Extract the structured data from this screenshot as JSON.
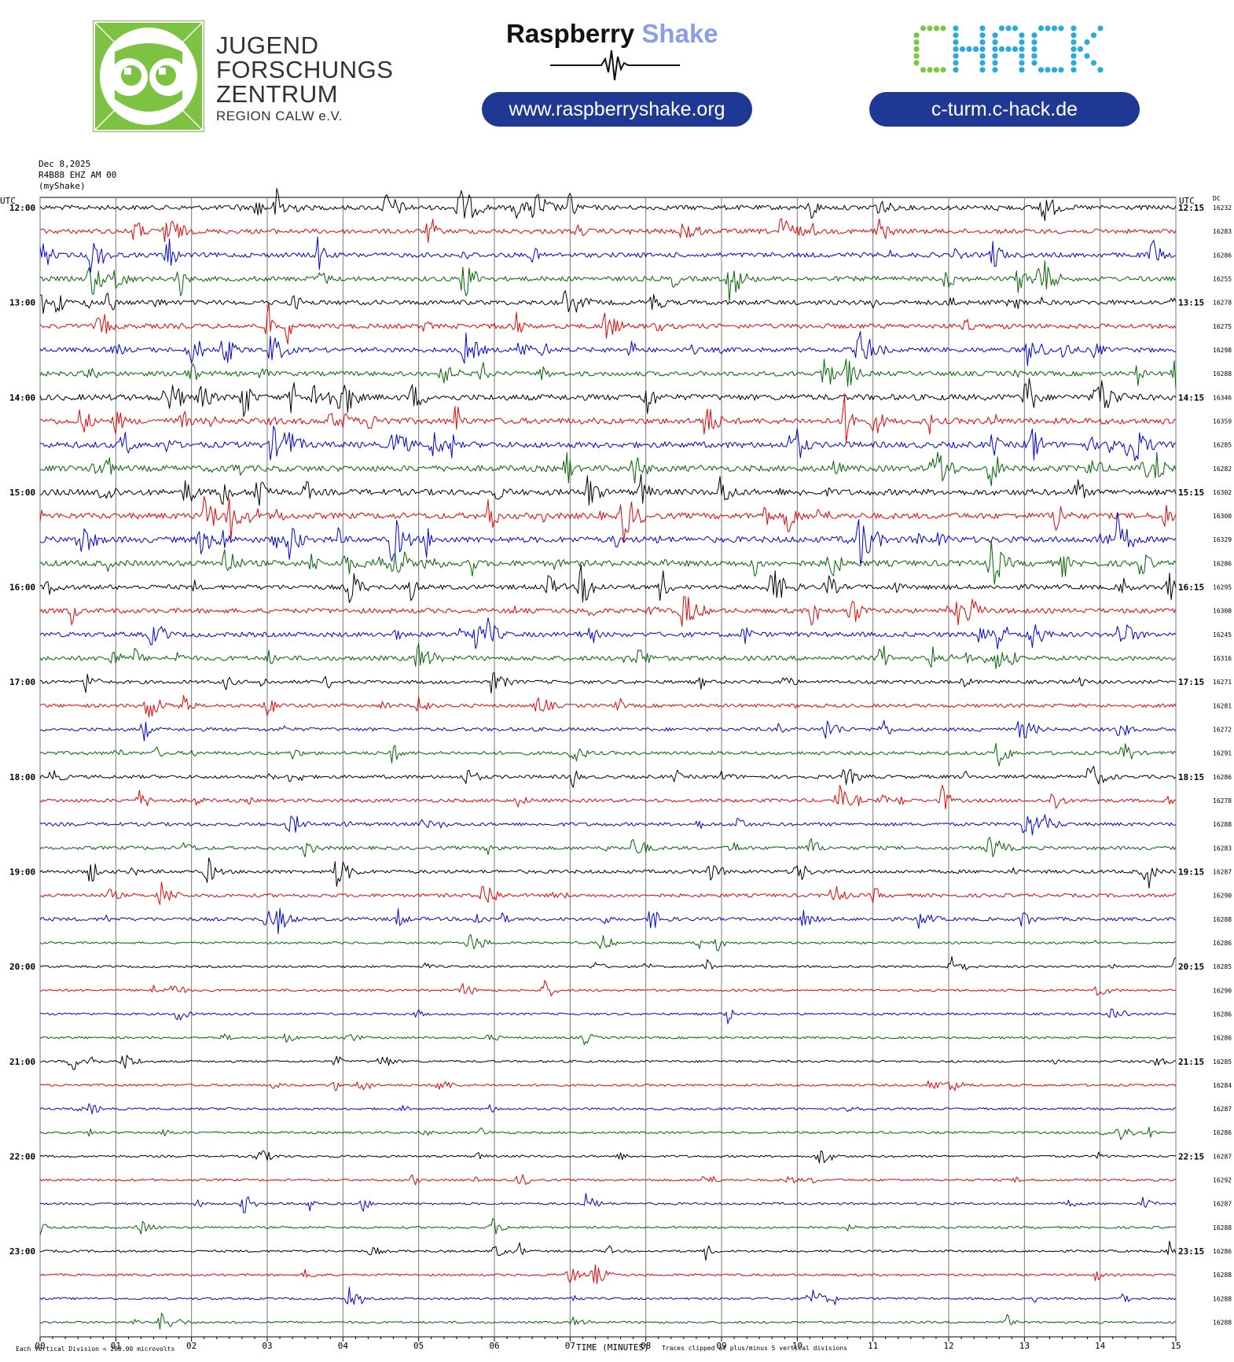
{
  "header": {
    "jfz_logo": {
      "line1": "JUGEND",
      "line2": "FORSCHUNGS",
      "line3": "ZENTRUM",
      "line4": "REGION CALW e.V.",
      "color": "#7dc242",
      "icon": "owl-icon"
    },
    "raspberry_shake": {
      "title_part1": "Raspberry",
      "title_part2": "Shake",
      "url": "www.raspberryshake.org",
      "icon": "seismogram-wave-icon"
    },
    "chack": {
      "logo_text": "CHACK",
      "url": "c-turm.c-hack.de",
      "colors": [
        "#7ac943",
        "#29abe2"
      ]
    }
  },
  "meta": {
    "date": "Dec 8,2025",
    "station": "R4B88 EHZ AM 00",
    "source": "(myShake)"
  },
  "chart_data": {
    "type": "helicorder",
    "left_axis_title": "UTC",
    "right_axis_title": "UTC",
    "dc_title": "DC",
    "xlabel": "TIME (MINUTES)",
    "x_ticks": [
      "00",
      "01",
      "02",
      "03",
      "04",
      "05",
      "06",
      "07",
      "08",
      "09",
      "10",
      "11",
      "12",
      "13",
      "14",
      "15"
    ],
    "xlim": [
      0,
      15
    ],
    "scale_note": "Each Vertical Division =  200.00 microvolts",
    "clip_note": "Traces clipped at plus/minus 5 vertical divisions",
    "trace_colors": [
      "#000000",
      "#ee0000",
      "#0000dd",
      "#006600"
    ],
    "rows": [
      {
        "left": "12:00",
        "right": "12:15",
        "dc": "16232",
        "activity": 3
      },
      {
        "left": "",
        "right": "",
        "dc": "16283",
        "activity": 3
      },
      {
        "left": "",
        "right": "",
        "dc": "16286",
        "activity": 3
      },
      {
        "left": "",
        "right": "",
        "dc": "16255",
        "activity": 3
      },
      {
        "left": "13:00",
        "right": "13:15",
        "dc": "16278",
        "activity": 3
      },
      {
        "left": "",
        "right": "",
        "dc": "16275",
        "activity": 3
      },
      {
        "left": "",
        "right": "",
        "dc": "16298",
        "activity": 3
      },
      {
        "left": "",
        "right": "",
        "dc": "16288",
        "activity": 3
      },
      {
        "left": "14:00",
        "right": "14:15",
        "dc": "16346",
        "activity": 4
      },
      {
        "left": "",
        "right": "",
        "dc": "16359",
        "activity": 4
      },
      {
        "left": "",
        "right": "",
        "dc": "16285",
        "activity": 4
      },
      {
        "left": "",
        "right": "",
        "dc": "16282",
        "activity": 4
      },
      {
        "left": "15:00",
        "right": "15:15",
        "dc": "16302",
        "activity": 4
      },
      {
        "left": "",
        "right": "",
        "dc": "16300",
        "activity": 4
      },
      {
        "left": "",
        "right": "",
        "dc": "16329",
        "activity": 4
      },
      {
        "left": "",
        "right": "",
        "dc": "16286",
        "activity": 4
      },
      {
        "left": "16:00",
        "right": "16:15",
        "dc": "16295",
        "activity": 3
      },
      {
        "left": "",
        "right": "",
        "dc": "16308",
        "activity": 3
      },
      {
        "left": "",
        "right": "",
        "dc": "16245",
        "activity": 3
      },
      {
        "left": "",
        "right": "",
        "dc": "16316",
        "activity": 3
      },
      {
        "left": "17:00",
        "right": "17:15",
        "dc": "16271",
        "activity": 2
      },
      {
        "left": "",
        "right": "",
        "dc": "16281",
        "activity": 2
      },
      {
        "left": "",
        "right": "",
        "dc": "16272",
        "activity": 2
      },
      {
        "left": "",
        "right": "",
        "dc": "16291",
        "activity": 2
      },
      {
        "left": "18:00",
        "right": "18:15",
        "dc": "16286",
        "activity": 2
      },
      {
        "left": "",
        "right": "",
        "dc": "16278",
        "activity": 2
      },
      {
        "left": "",
        "right": "",
        "dc": "16288",
        "activity": 2
      },
      {
        "left": "",
        "right": "",
        "dc": "16283",
        "activity": 2
      },
      {
        "left": "19:00",
        "right": "19:15",
        "dc": "16287",
        "activity": 2
      },
      {
        "left": "",
        "right": "",
        "dc": "16290",
        "activity": 2
      },
      {
        "left": "",
        "right": "",
        "dc": "16288",
        "activity": 2
      },
      {
        "left": "",
        "right": "",
        "dc": "16286",
        "activity": 1
      },
      {
        "left": "20:00",
        "right": "20:15",
        "dc": "16285",
        "activity": 1
      },
      {
        "left": "",
        "right": "",
        "dc": "16290",
        "activity": 1
      },
      {
        "left": "",
        "right": "",
        "dc": "16286",
        "activity": 1
      },
      {
        "left": "",
        "right": "",
        "dc": "16286",
        "activity": 1
      },
      {
        "left": "21:00",
        "right": "21:15",
        "dc": "16285",
        "activity": 1
      },
      {
        "left": "",
        "right": "",
        "dc": "16284",
        "activity": 1
      },
      {
        "left": "",
        "right": "",
        "dc": "16287",
        "activity": 1
      },
      {
        "left": "",
        "right": "",
        "dc": "16286",
        "activity": 1
      },
      {
        "left": "22:00",
        "right": "22:15",
        "dc": "16287",
        "activity": 1
      },
      {
        "left": "",
        "right": "",
        "dc": "16292",
        "activity": 1
      },
      {
        "left": "",
        "right": "",
        "dc": "16287",
        "activity": 1
      },
      {
        "left": "",
        "right": "",
        "dc": "16288",
        "activity": 1
      },
      {
        "left": "23:00",
        "right": "23:15",
        "dc": "16286",
        "activity": 1
      },
      {
        "left": "",
        "right": "",
        "dc": "16288",
        "activity": 1
      },
      {
        "left": "",
        "right": "",
        "dc": "16288",
        "activity": 1
      },
      {
        "left": "",
        "right": "",
        "dc": "16288",
        "activity": 1
      }
    ]
  }
}
